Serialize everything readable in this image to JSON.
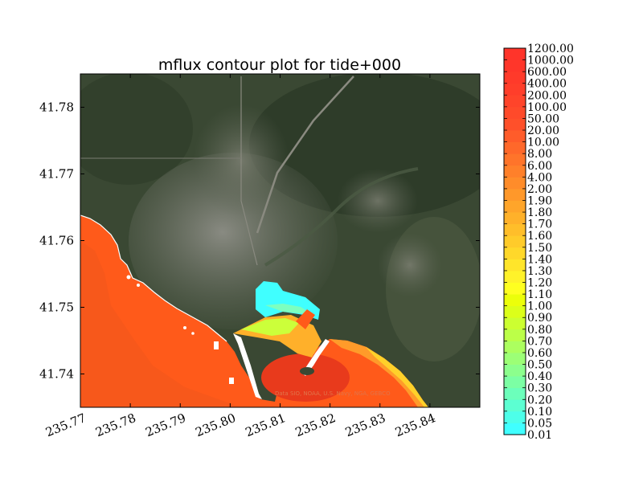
{
  "chart_data": {
    "type": "heatmap",
    "title": "mflux contour plot for tide+000",
    "xlim": [
      235.77,
      235.85
    ],
    "ylim": [
      41.735,
      41.785
    ],
    "x_ticks": [
      "235.77",
      "235.78",
      "235.79",
      "235.80",
      "235.81",
      "235.82",
      "235.83",
      "235.84"
    ],
    "y_ticks": [
      "41.74",
      "41.75",
      "41.76",
      "41.77",
      "41.78"
    ],
    "colorbar": {
      "levels": [
        "0.01",
        "0.05",
        "0.10",
        "0.20",
        "0.30",
        "0.40",
        "0.50",
        "0.60",
        "0.70",
        "0.80",
        "0.90",
        "1.00",
        "1.10",
        "1.20",
        "1.30",
        "1.40",
        "1.50",
        "1.60",
        "1.70",
        "1.80",
        "1.90",
        "2.00",
        "4.00",
        "6.00",
        "8.00",
        "10.00",
        "20.00",
        "50.00",
        "100.00",
        "200.00",
        "400.00",
        "600.00",
        "1000.00",
        "1200.00"
      ],
      "colors": [
        "#40ffff",
        "#4dffe9",
        "#5cffd2",
        "#6cffbb",
        "#7cffa4",
        "#8cff8d",
        "#9cff76",
        "#acff5f",
        "#bcff48",
        "#ccff31",
        "#dcff1a",
        "#ecff0a",
        "#ffff20",
        "#fff22a",
        "#ffe52a",
        "#ffd82a",
        "#ffcb2a",
        "#ffbe2a",
        "#ffb12a",
        "#ffa52a",
        "#ff982a",
        "#ff8c2a",
        "#ff802a",
        "#ff742a",
        "#ff682a",
        "#ff5c2a",
        "#ff502a",
        "#ff4a2a",
        "#ff442a",
        "#ff3e2a",
        "#ff3a2a",
        "#ff362a",
        "#ff342a"
      ]
    },
    "map_credit": "Data SIO, NOAA, U.S. Navy, NGA, GEBCO",
    "colors": {
      "land": "#3c4a34",
      "water_high": "#ff5a1a",
      "water_low": "#40ffff",
      "urban": "#8a8b84"
    }
  }
}
